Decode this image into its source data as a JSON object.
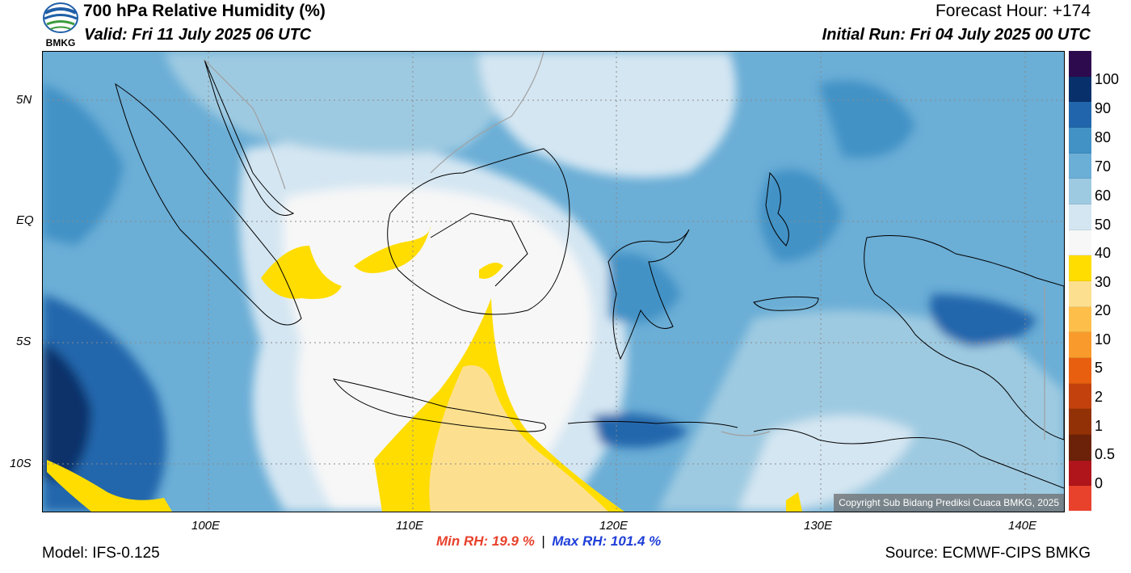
{
  "header": {
    "logo_text": "BMKG",
    "title": "700 hPa Relative Humidity (%)",
    "valid": "Valid: Fri 11 July 2025 06 UTC",
    "forecast_hour": "Forecast Hour: +174",
    "initial_run": "Initial Run: Fri 04 July 2025 00 UTC"
  },
  "map": {
    "lat_ticks": [
      "5N",
      "EQ",
      "5S",
      "10S"
    ],
    "lon_ticks": [
      "100E",
      "110E",
      "120E",
      "130E",
      "140E"
    ],
    "copyright": "Copyright Sub Bidang Prediksi Cuaca BMKG, 2025"
  },
  "colorbar": {
    "labels": [
      "100",
      "90",
      "80",
      "70",
      "60",
      "50",
      "40",
      "30",
      "20",
      "10",
      "5",
      "2",
      "1",
      "0.5",
      "0"
    ],
    "colors": [
      "#2d0a4e",
      "#08306b",
      "#2166ac",
      "#4292c6",
      "#6baed6",
      "#9ecae1",
      "#d4e6f2",
      "#f7f7f7",
      "#ffdd00",
      "#fde08f",
      "#fdbf4a",
      "#f99a2c",
      "#e8600f",
      "#c2410c",
      "#923006",
      "#6b2208",
      "#b0151c",
      "#e8412c"
    ]
  },
  "footer": {
    "model": "Model: IFS-0.125",
    "min_rh": "Min RH:  19.9 %",
    "separator": "|",
    "max_rh": "Max RH: 101.4 %",
    "source": "Source: ECMWF-CIPS BMKG"
  }
}
